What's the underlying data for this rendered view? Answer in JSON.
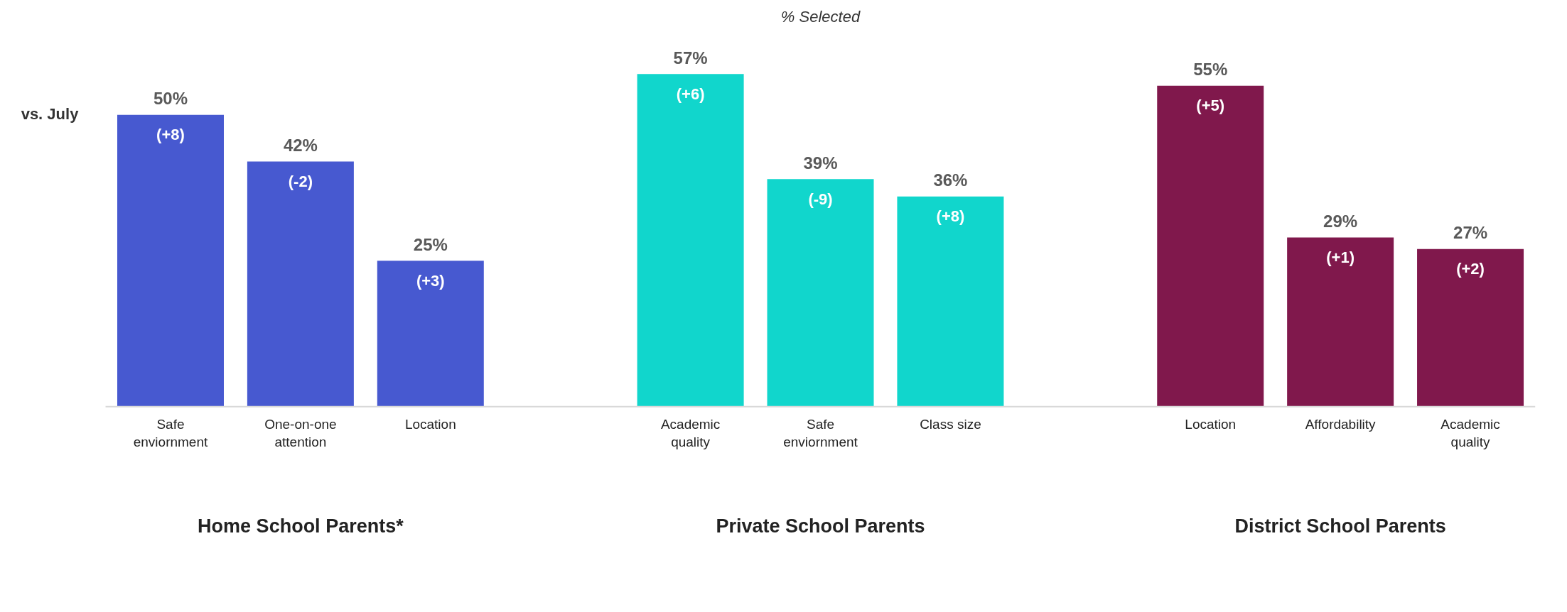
{
  "chart_data": {
    "type": "bar",
    "title": "% Selected",
    "categories": [
      "Safe enviornment",
      "One-on-one attention",
      "Location",
      null,
      "Academic quality",
      "Safe enviornment",
      "Class size",
      null,
      "Location",
      "Affordability",
      "Academic quality"
    ],
    "values": [
      50,
      42,
      25,
      null,
      57,
      39,
      36,
      null,
      55,
      29,
      27
    ],
    "colors": [
      "#4759d0",
      "#4759d0",
      "#4759d0",
      null,
      "#11d6cc",
      "#11d6cc",
      "#11d6cc",
      null,
      "#80184c",
      "#80184c",
      "#80184c"
    ],
    "data_labels": true,
    "value_labels": [
      "50%",
      "42%",
      "25%",
      null,
      "57%",
      "39%",
      "36%",
      null,
      "55%",
      "29%",
      "27%"
    ],
    "annotations": [
      "vs. July",
      "(+8)",
      "(-2)",
      "(+3)",
      "(+6)",
      "(-9)",
      "(+8)",
      "(+5)",
      "(+1)",
      "(+2)",
      "Home School Parents*",
      "Private School Parents",
      "District School Parents"
    ],
    "grid": false
  }
}
